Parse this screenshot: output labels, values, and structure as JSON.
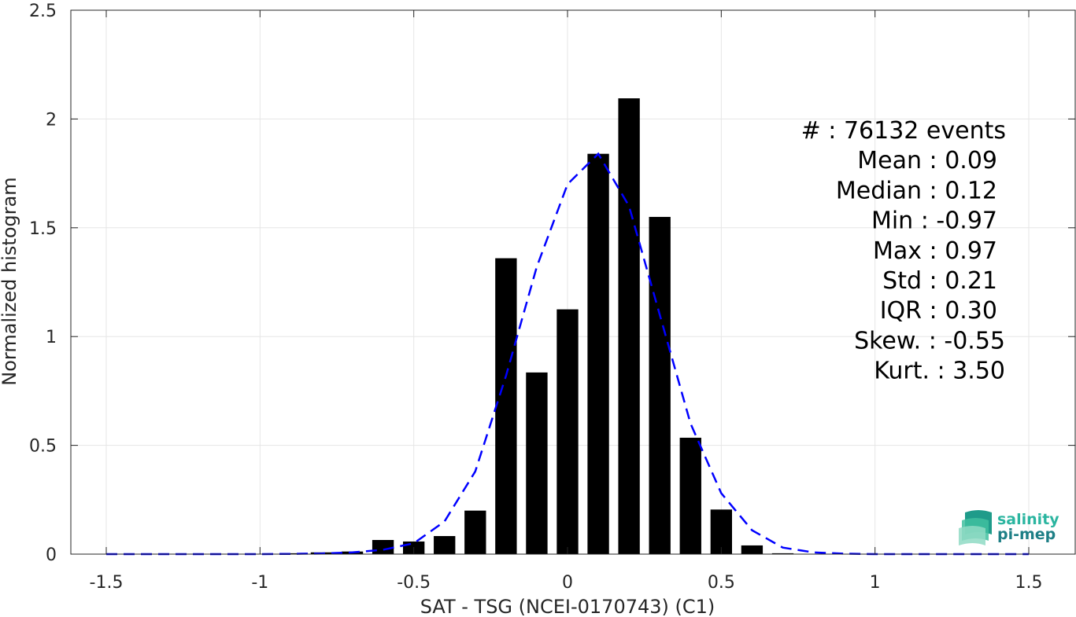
{
  "chart_data": {
    "type": "bar",
    "xlabel": "SAT - TSG (NCEI-0170743) (C1)",
    "ylabel": "Normalized histogram",
    "xlim": [
      -1.5,
      1.5
    ],
    "ylim": [
      0,
      2.5
    ],
    "xticks": [
      -1.5,
      -1,
      -0.5,
      0,
      0.5,
      1,
      1.5
    ],
    "xtick_labels": [
      "-1.5",
      "-1",
      "-0.5",
      "0",
      "0.5",
      "1",
      "1.5"
    ],
    "yticks": [
      0,
      0.5,
      1,
      1.5,
      2,
      2.5
    ],
    "ytick_labels": [
      "0",
      "0.5",
      "1",
      "1.5",
      "2",
      "2.5"
    ],
    "grid": true,
    "bar_width": 0.07,
    "bar_color": "#000000",
    "bars": {
      "x": [
        -0.9,
        -0.8,
        -0.7,
        -0.6,
        -0.5,
        -0.4,
        -0.3,
        -0.2,
        -0.1,
        0.0,
        0.1,
        0.2,
        0.3,
        0.4,
        0.5,
        0.6,
        0.7
      ],
      "values": [
        0.004,
        0.008,
        0.012,
        0.065,
        0.058,
        0.083,
        0.2,
        1.36,
        0.835,
        1.125,
        1.84,
        2.095,
        1.55,
        0.535,
        0.205,
        0.04,
        0.004
      ]
    },
    "fit_curve": {
      "style": "dashed",
      "color": "#0000ff",
      "x": [
        -1.5,
        -1.4,
        -1.3,
        -1.2,
        -1.1,
        -1.0,
        -0.9,
        -0.8,
        -0.7,
        -0.6,
        -0.5,
        -0.4,
        -0.3,
        -0.2,
        -0.1,
        0.0,
        0.1,
        0.2,
        0.3,
        0.4,
        0.5,
        0.6,
        0.7,
        0.8,
        0.9,
        1.0,
        1.1,
        1.2,
        1.3,
        1.4,
        1.5
      ],
      "y": [
        0,
        0,
        0,
        0,
        0,
        0,
        0.001,
        0.003,
        0.008,
        0.02,
        0.05,
        0.15,
        0.38,
        0.82,
        1.32,
        1.7,
        1.84,
        1.6,
        1.1,
        0.6,
        0.28,
        0.11,
        0.03,
        0.008,
        0.002,
        0,
        0,
        0,
        0,
        0,
        0
      ]
    },
    "stats": [
      "#  : 76132 events",
      "Mean : 0.09",
      "Median : 0.12",
      "Min : -0.97",
      "Max : 0.97",
      "Std : 0.21",
      "IQR : 0.30",
      "Skew. : -0.55",
      "Kurt. : 3.50"
    ]
  },
  "logo": {
    "line1": "salinity",
    "line2": "pi-mep",
    "color1": "#2bb5a0",
    "color2": "#1e7f86"
  }
}
